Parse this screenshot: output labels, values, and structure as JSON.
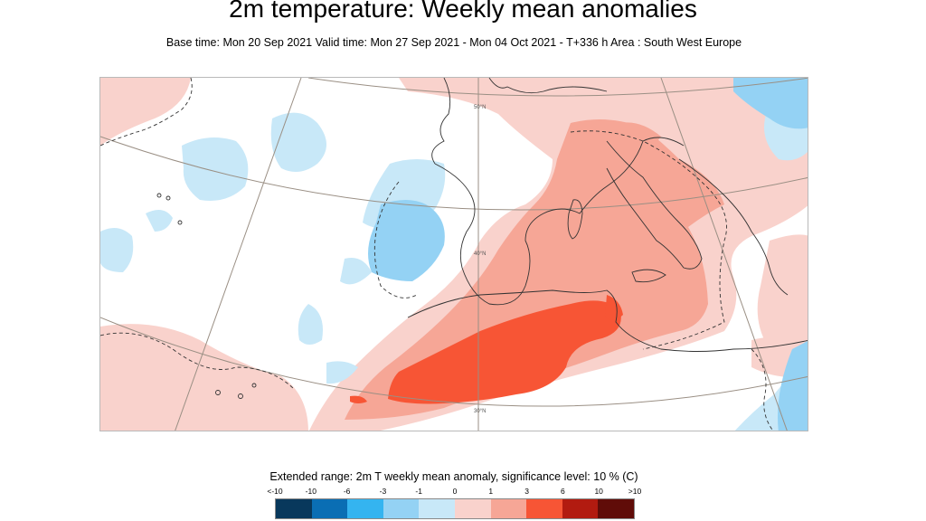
{
  "header": {
    "title": "2m temperature: Weekly mean anomalies",
    "subtitle": "Base time: Mon 20 Sep 2021 Valid time: Mon 27 Sep 2021 - Mon 04 Oct 2021 - T+336 h Area : South West Europe"
  },
  "map": {
    "region": "South West Europe",
    "parallel_labels": [
      "50°N",
      "40°N",
      "30°N"
    ]
  },
  "legend": {
    "title": "Extended range: 2m T weekly mean anomaly, significance level: 10 % (C)",
    "ticks": [
      "<-10",
      "-10",
      "-6",
      "-3",
      "-1",
      "0",
      "1",
      "3",
      "6",
      "10",
      ">10"
    ],
    "colors": [
      "#08385c",
      "#0a6eb4",
      "#34b4f0",
      "#94d2f4",
      "#c8e8f8",
      "#f9d2cc",
      "#f6a696",
      "#f75535",
      "#b21b10",
      "#600c08"
    ]
  },
  "anomaly_colors": {
    "neg_1_0": "#c8e8f8",
    "neg_3_1": "#94d2f4",
    "pos_0_1": "#f9d2cc",
    "pos_1_3": "#f6a696",
    "pos_3_6": "#f75535"
  }
}
